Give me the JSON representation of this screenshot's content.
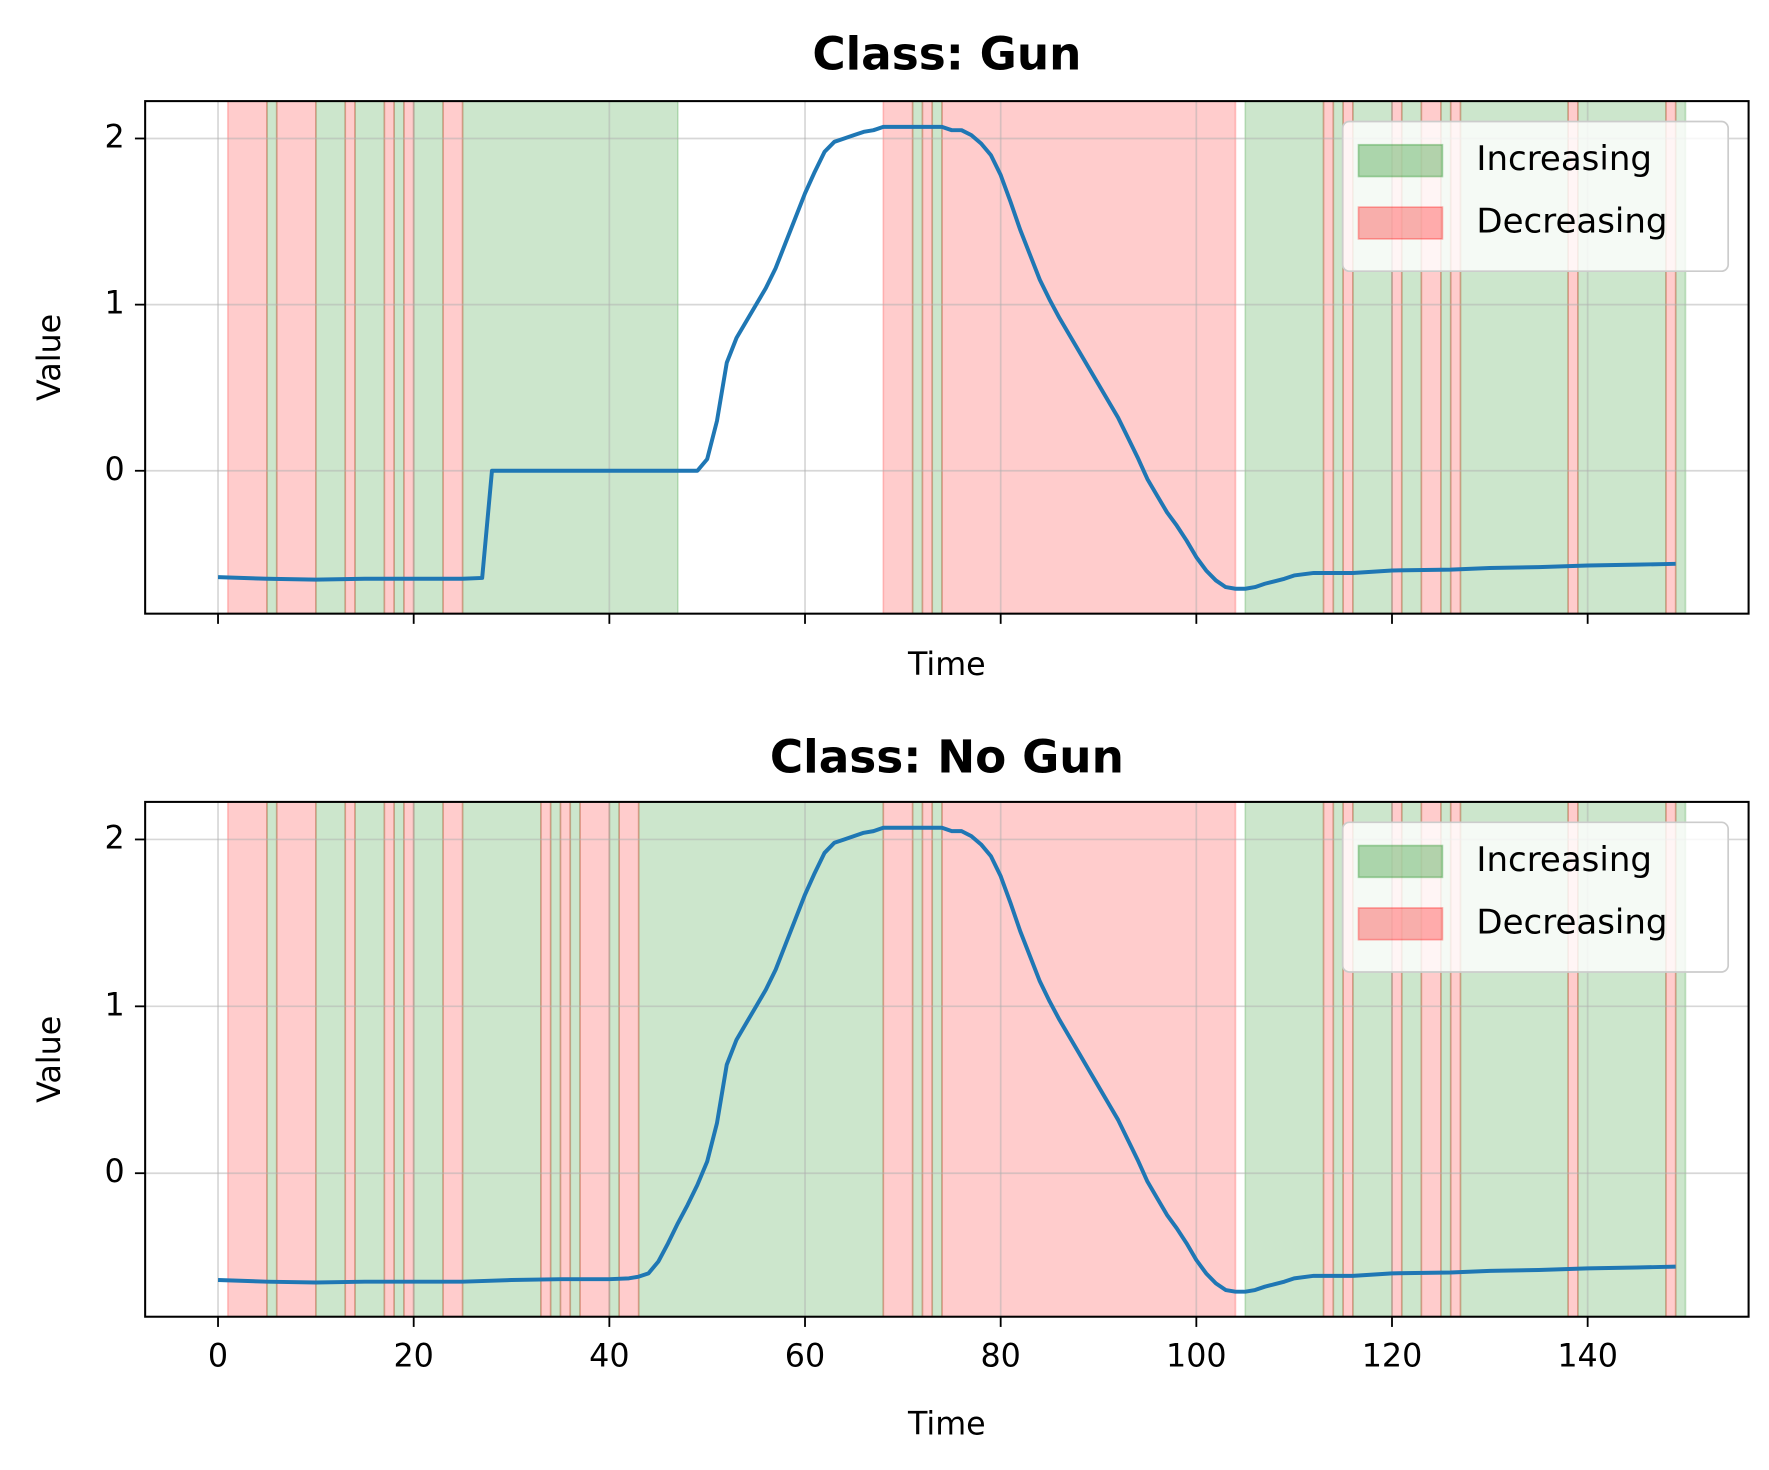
{
  "chart_data": [
    {
      "type": "line",
      "title": "Class: Gun",
      "xlabel": "Time",
      "ylabel": "Value",
      "xlim": [
        -7.45,
        156.45
      ],
      "ylim": [
        -0.86,
        2.225
      ],
      "xticks": [
        0,
        20,
        40,
        60,
        80,
        100,
        120,
        140
      ],
      "yticks": [
        0,
        1,
        2
      ],
      "xtick_labels": false,
      "grid": true,
      "legend": "upper right",
      "spans": [
        {
          "name": "Increasing",
          "color": "green",
          "ranges": [
            [
              5,
              6
            ],
            [
              10,
              13
            ],
            [
              14,
              17
            ],
            [
              18,
              19
            ],
            [
              20,
              23
            ],
            [
              25,
              47
            ],
            [
              71,
              72
            ],
            [
              73,
              74
            ],
            [
              105,
              113
            ],
            [
              114,
              115
            ],
            [
              116,
              120
            ],
            [
              121,
              123
            ],
            [
              125,
              126
            ],
            [
              127,
              138
            ],
            [
              139,
              148
            ],
            [
              149,
              150
            ]
          ]
        },
        {
          "name": "Decreasing",
          "color": "red",
          "ranges": [
            [
              1,
              5
            ],
            [
              6,
              10
            ],
            [
              13,
              14
            ],
            [
              17,
              18
            ],
            [
              19,
              20
            ],
            [
              23,
              25
            ],
            [
              68,
              71
            ],
            [
              72,
              73
            ],
            [
              74,
              104
            ],
            [
              113,
              114
            ],
            [
              115,
              116
            ],
            [
              120,
              121
            ],
            [
              123,
              125
            ],
            [
              126,
              127
            ],
            [
              138,
              139
            ],
            [
              148,
              149
            ]
          ]
        }
      ],
      "series": [
        {
          "color": "#1f77b4",
          "x": [
            0,
            5,
            10,
            15,
            20,
            25,
            27,
            28,
            49,
            50,
            51,
            52,
            53,
            54,
            55,
            56,
            57,
            58,
            59,
            60,
            61,
            62,
            63,
            64,
            65,
            66,
            67,
            68,
            70,
            72,
            74,
            75,
            76,
            77,
            78,
            79,
            80,
            81,
            82,
            83,
            84,
            85,
            86,
            87,
            88,
            89,
            90,
            91,
            92,
            93,
            94,
            95,
            96,
            97,
            98,
            99,
            100,
            101,
            102,
            103,
            104,
            105,
            106,
            107,
            108,
            109,
            110,
            112,
            116,
            120,
            126,
            130,
            135,
            140,
            145,
            149
          ],
          "values": [
            -0.64,
            -0.65,
            -0.655,
            -0.65,
            -0.65,
            -0.65,
            -0.645,
            0,
            0,
            0.07,
            0.3,
            0.65,
            0.8,
            0.9,
            1.0,
            1.1,
            1.22,
            1.37,
            1.52,
            1.67,
            1.8,
            1.92,
            1.98,
            2.0,
            2.02,
            2.04,
            2.05,
            2.07,
            2.07,
            2.07,
            2.07,
            2.05,
            2.05,
            2.02,
            1.97,
            1.9,
            1.78,
            1.62,
            1.45,
            1.3,
            1.15,
            1.03,
            0.92,
            0.82,
            0.72,
            0.62,
            0.52,
            0.42,
            0.32,
            0.2,
            0.08,
            -0.05,
            -0.15,
            -0.25,
            -0.33,
            -0.42,
            -0.52,
            -0.6,
            -0.66,
            -0.7,
            -0.71,
            -0.71,
            -0.7,
            -0.68,
            -0.665,
            -0.65,
            -0.63,
            -0.615,
            -0.615,
            -0.6,
            -0.595,
            -0.585,
            -0.58,
            -0.57,
            -0.565,
            -0.56
          ]
        }
      ]
    },
    {
      "type": "line",
      "title": "Class: No Gun",
      "xlabel": "Time",
      "ylabel": "Value",
      "xlim": [
        -7.45,
        156.45
      ],
      "ylim": [
        -0.86,
        2.225
      ],
      "xticks": [
        0,
        20,
        40,
        60,
        80,
        100,
        120,
        140
      ],
      "yticks": [
        0,
        1,
        2
      ],
      "xtick_labels": true,
      "grid": true,
      "legend": "upper right",
      "spans": [
        {
          "name": "Increasing",
          "color": "green",
          "ranges": [
            [
              5,
              6
            ],
            [
              10,
              13
            ],
            [
              14,
              17
            ],
            [
              18,
              19
            ],
            [
              20,
              23
            ],
            [
              25,
              33
            ],
            [
              34,
              35
            ],
            [
              36,
              37
            ],
            [
              40,
              41
            ],
            [
              43,
              68
            ],
            [
              71,
              72
            ],
            [
              73,
              74
            ],
            [
              105,
              113
            ],
            [
              114,
              115
            ],
            [
              116,
              120
            ],
            [
              121,
              123
            ],
            [
              125,
              126
            ],
            [
              127,
              138
            ],
            [
              139,
              148
            ],
            [
              149,
              150
            ]
          ]
        },
        {
          "name": "Decreasing",
          "color": "red",
          "ranges": [
            [
              1,
              5
            ],
            [
              6,
              10
            ],
            [
              13,
              14
            ],
            [
              17,
              18
            ],
            [
              19,
              20
            ],
            [
              23,
              25
            ],
            [
              33,
              34
            ],
            [
              35,
              36
            ],
            [
              37,
              40
            ],
            [
              41,
              43
            ],
            [
              68,
              71
            ],
            [
              72,
              73
            ],
            [
              74,
              104
            ],
            [
              113,
              114
            ],
            [
              115,
              116
            ],
            [
              120,
              121
            ],
            [
              123,
              125
            ],
            [
              126,
              127
            ],
            [
              138,
              139
            ],
            [
              148,
              149
            ]
          ]
        }
      ],
      "series": [
        {
          "color": "#1f77b4",
          "x": [
            0,
            5,
            10,
            15,
            20,
            25,
            30,
            35,
            40,
            42,
            43,
            44,
            45,
            46,
            47,
            48,
            49,
            50,
            51,
            52,
            53,
            54,
            55,
            56,
            57,
            58,
            59,
            60,
            61,
            62,
            63,
            64,
            65,
            66,
            67,
            68,
            70,
            72,
            74,
            75,
            76,
            77,
            78,
            79,
            80,
            81,
            82,
            83,
            84,
            85,
            86,
            87,
            88,
            89,
            90,
            91,
            92,
            93,
            94,
            95,
            96,
            97,
            98,
            99,
            100,
            101,
            102,
            103,
            104,
            105,
            106,
            107,
            108,
            109,
            110,
            112,
            116,
            120,
            126,
            130,
            135,
            140,
            145,
            149
          ],
          "values": [
            -0.64,
            -0.65,
            -0.655,
            -0.65,
            -0.65,
            -0.65,
            -0.64,
            -0.635,
            -0.635,
            -0.63,
            -0.62,
            -0.6,
            -0.53,
            -0.42,
            -0.3,
            -0.19,
            -0.07,
            0.07,
            0.3,
            0.65,
            0.8,
            0.9,
            1.0,
            1.1,
            1.22,
            1.37,
            1.52,
            1.67,
            1.8,
            1.92,
            1.98,
            2.0,
            2.02,
            2.04,
            2.05,
            2.07,
            2.07,
            2.07,
            2.07,
            2.05,
            2.05,
            2.02,
            1.97,
            1.9,
            1.78,
            1.62,
            1.45,
            1.3,
            1.15,
            1.03,
            0.92,
            0.82,
            0.72,
            0.62,
            0.52,
            0.42,
            0.32,
            0.2,
            0.08,
            -0.05,
            -0.15,
            -0.25,
            -0.33,
            -0.42,
            -0.52,
            -0.6,
            -0.66,
            -0.7,
            -0.71,
            -0.71,
            -0.7,
            -0.68,
            -0.665,
            -0.65,
            -0.63,
            -0.615,
            -0.615,
            -0.6,
            -0.595,
            -0.585,
            -0.58,
            -0.57,
            -0.565,
            -0.56
          ]
        }
      ]
    }
  ]
}
